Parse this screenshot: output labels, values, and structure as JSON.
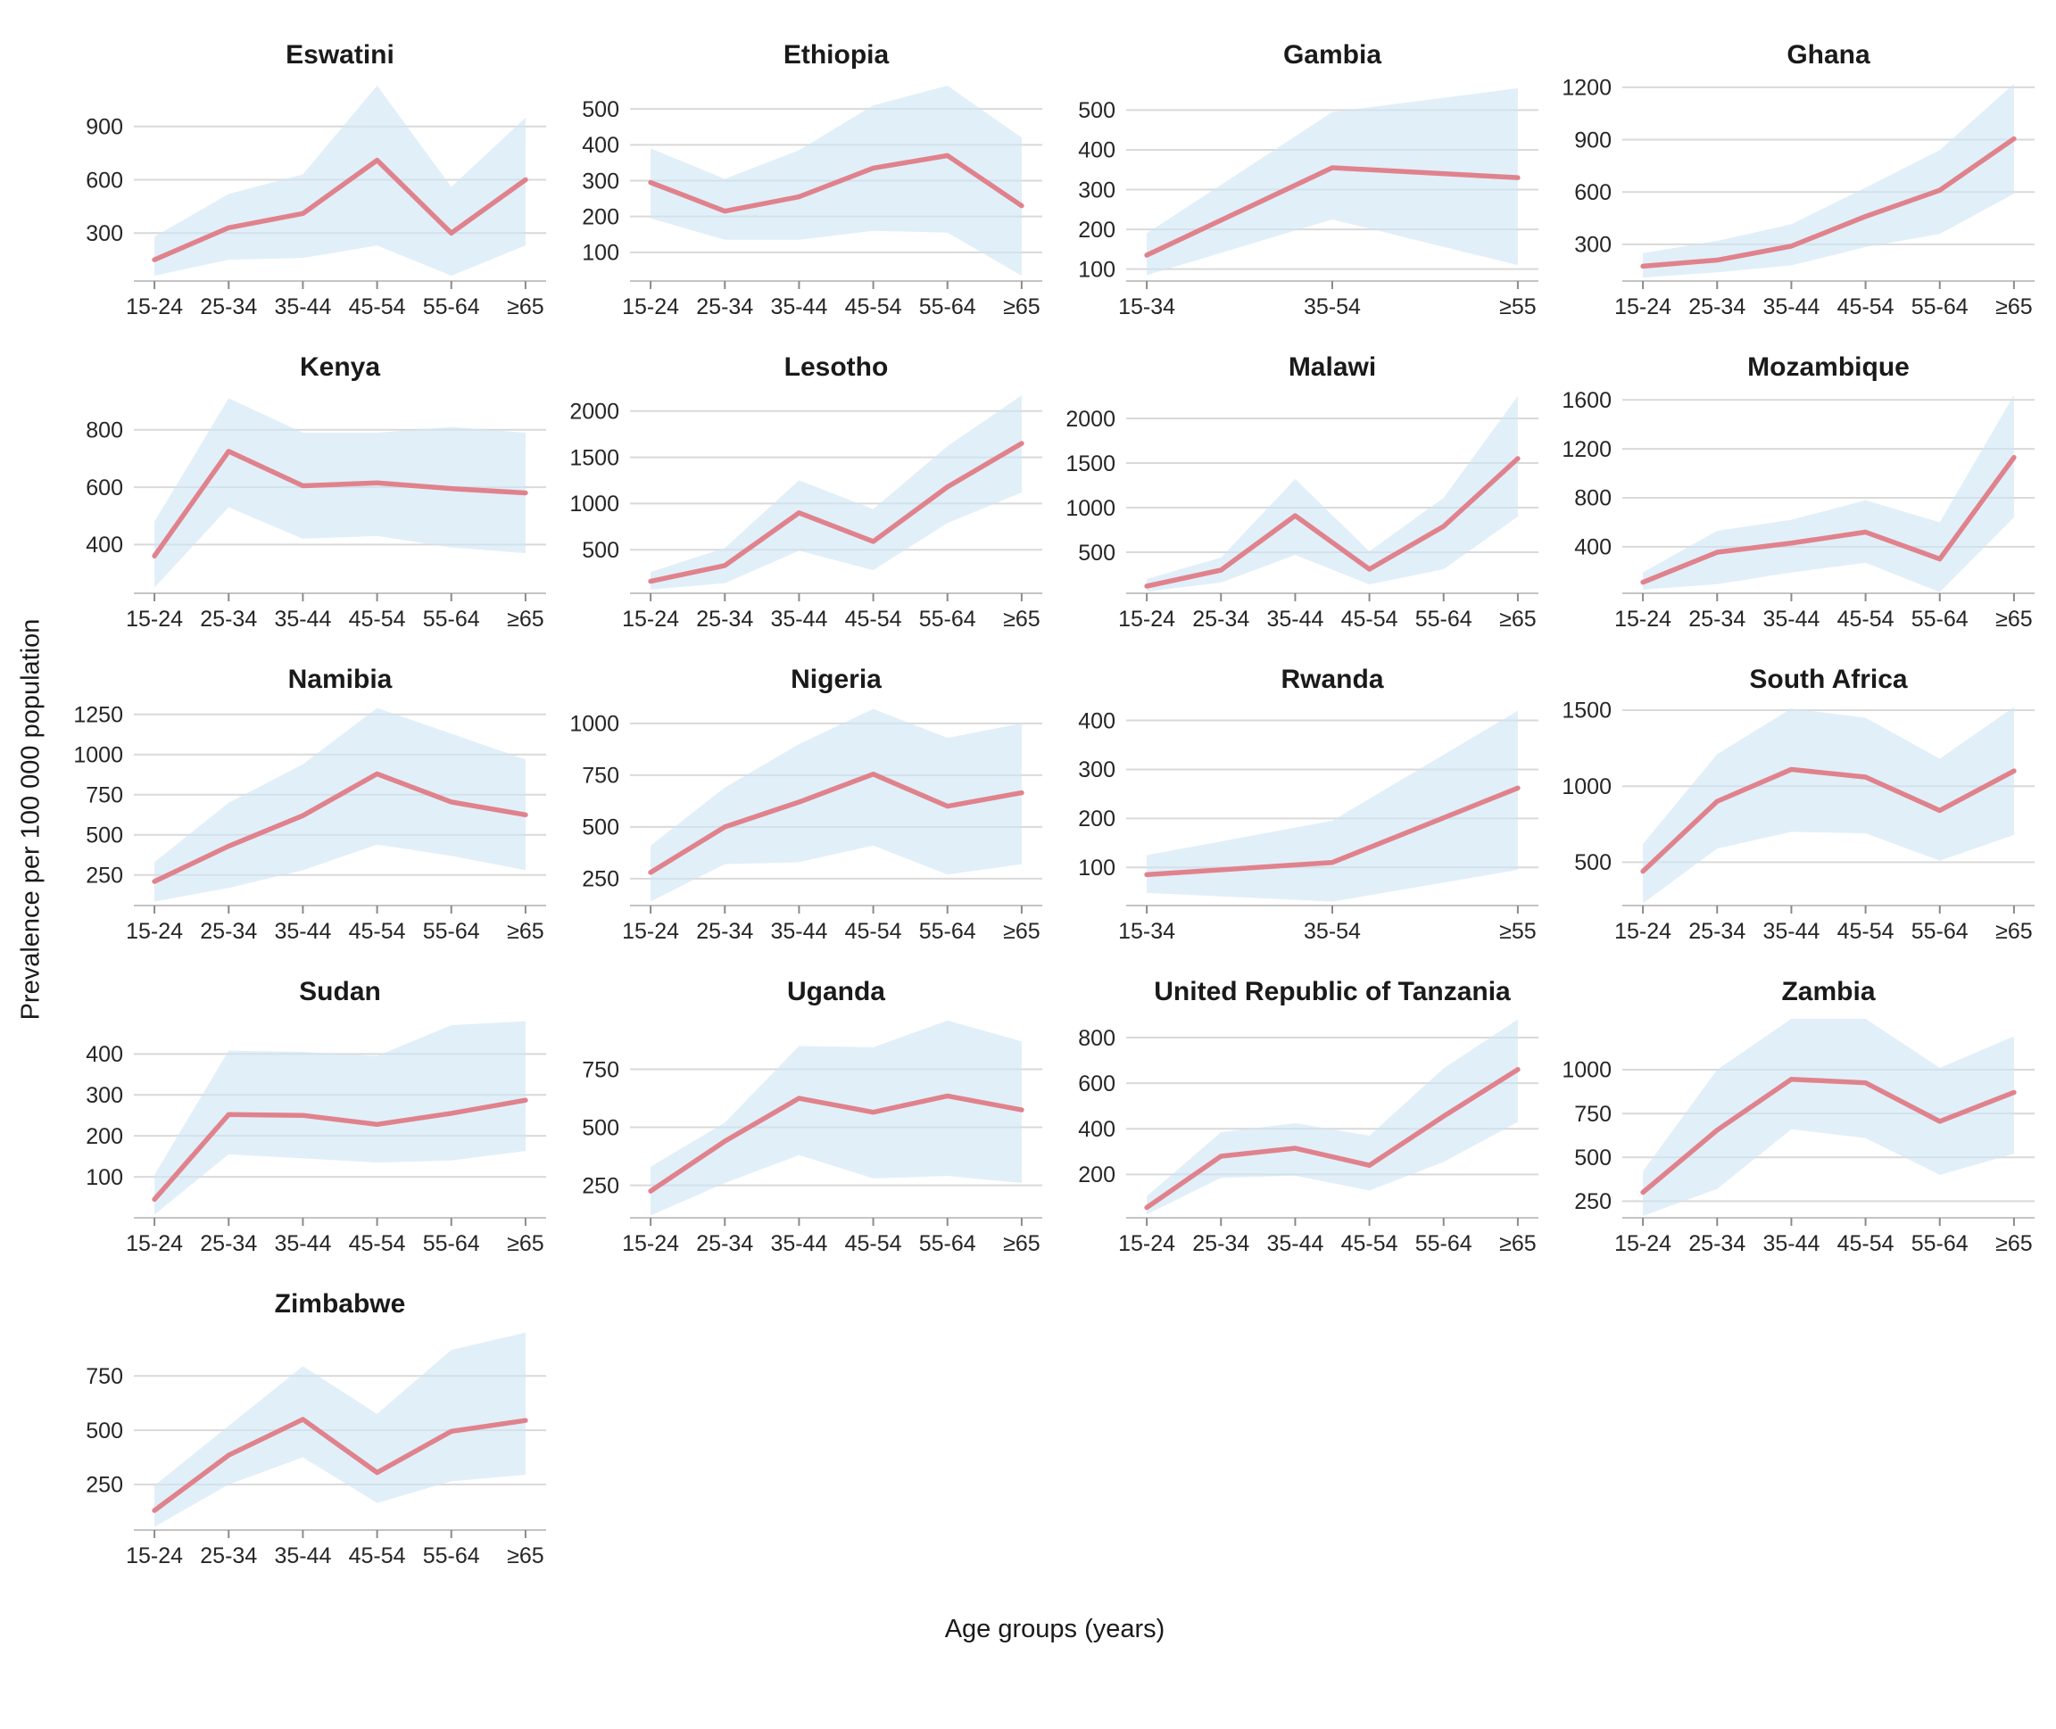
{
  "figure": {
    "y_axis_label": "Prevalence per 100 000 population",
    "x_axis_label": "Age groups (years)"
  },
  "style": {
    "line_color": "#e0828c",
    "band_fill": "rgba(206,229,246,0.62)",
    "grid_color": "#d9d9d9",
    "axis_color": "#c4c4c4",
    "tick_color": "#8a8a8a",
    "label_color": "#262626"
  },
  "chart_data": [
    {
      "type": "line",
      "title": "Eswatini",
      "categories": [
        "15-24",
        "25-34",
        "35-44",
        "45-54",
        "55-64",
        "≥65"
      ],
      "values": [
        150,
        330,
        410,
        710,
        300,
        600
      ],
      "lower": [
        60,
        150,
        160,
        230,
        60,
        230
      ],
      "upper": [
        280,
        520,
        630,
        1130,
        560,
        950
      ],
      "yticks": [
        300,
        600,
        900
      ],
      "ylim": [
        30,
        1160
      ],
      "ylabel": "Prevalence per 100 000 population"
    },
    {
      "type": "line",
      "title": "Ethiopia",
      "categories": [
        "15-24",
        "25-34",
        "35-44",
        "45-54",
        "55-64",
        "≥65"
      ],
      "values": [
        295,
        215,
        255,
        335,
        370,
        230
      ],
      "lower": [
        195,
        135,
        135,
        160,
        155,
        35
      ],
      "upper": [
        390,
        305,
        385,
        510,
        565,
        420
      ],
      "yticks": [
        100,
        200,
        300,
        400,
        500
      ],
      "ylim": [
        20,
        580
      ]
    },
    {
      "type": "line",
      "title": "Gambia",
      "categories": [
        "15-34",
        "35-54",
        "≥55"
      ],
      "values": [
        135,
        355,
        330
      ],
      "lower": [
        85,
        225,
        110
      ],
      "upper": [
        190,
        495,
        555
      ],
      "yticks": [
        100,
        200,
        300,
        400,
        500
      ],
      "ylim": [
        70,
        575
      ]
    },
    {
      "type": "line",
      "title": "Ghana",
      "categories": [
        "15-24",
        "25-34",
        "35-44",
        "45-54",
        "55-64",
        "≥65"
      ],
      "values": [
        175,
        210,
        290,
        460,
        610,
        905
      ],
      "lower": [
        110,
        140,
        180,
        285,
        360,
        590
      ],
      "upper": [
        250,
        320,
        415,
        625,
        840,
        1220
      ],
      "yticks": [
        300,
        600,
        900,
        1200
      ],
      "ylim": [
        90,
        1240
      ]
    },
    {
      "type": "line",
      "title": "Kenya",
      "categories": [
        "15-24",
        "25-34",
        "35-44",
        "45-54",
        "55-64",
        "≥65"
      ],
      "values": [
        360,
        725,
        605,
        615,
        595,
        580
      ],
      "lower": [
        250,
        530,
        420,
        430,
        390,
        370
      ],
      "upper": [
        480,
        910,
        790,
        790,
        810,
        790
      ],
      "yticks": [
        400,
        600,
        800
      ],
      "ylim": [
        230,
        930
      ]
    },
    {
      "type": "line",
      "title": "Lesotho",
      "categories": [
        "15-24",
        "25-34",
        "35-44",
        "45-54",
        "55-64",
        "≥65"
      ],
      "values": [
        160,
        330,
        900,
        590,
        1180,
        1650
      ],
      "lower": [
        70,
        140,
        490,
        280,
        790,
        1120
      ],
      "upper": [
        260,
        520,
        1250,
        940,
        1620,
        2170
      ],
      "yticks": [
        500,
        1000,
        1500,
        2000
      ],
      "ylim": [
        30,
        2200
      ]
    },
    {
      "type": "line",
      "title": "Malawi",
      "categories": [
        "15-24",
        "25-34",
        "35-44",
        "45-54",
        "55-64",
        "≥65"
      ],
      "values": [
        120,
        300,
        910,
        310,
        790,
        1550
      ],
      "lower": [
        60,
        160,
        470,
        140,
        310,
        900
      ],
      "upper": [
        200,
        440,
        1320,
        510,
        1110,
        2250
      ],
      "yticks": [
        500,
        1000,
        1500,
        2000
      ],
      "ylim": [
        40,
        2290
      ]
    },
    {
      "type": "line",
      "title": "Mozambique",
      "categories": [
        "15-24",
        "25-34",
        "35-44",
        "45-54",
        "55-64",
        "≥65"
      ],
      "values": [
        110,
        355,
        430,
        520,
        300,
        1130
      ],
      "lower": [
        50,
        95,
        190,
        270,
        30,
        640
      ],
      "upper": [
        190,
        530,
        620,
        780,
        600,
        1640
      ],
      "yticks": [
        400,
        800,
        1200,
        1600
      ],
      "ylim": [
        20,
        1660
      ]
    },
    {
      "type": "line",
      "title": "Namibia",
      "categories": [
        "15-24",
        "25-34",
        "35-44",
        "45-54",
        "55-64",
        "≥65"
      ],
      "values": [
        210,
        430,
        620,
        880,
        705,
        625
      ],
      "lower": [
        85,
        170,
        280,
        440,
        370,
        280
      ],
      "upper": [
        330,
        700,
        940,
        1290,
        1130,
        970
      ],
      "yticks": [
        250,
        500,
        750,
        1000,
        1250
      ],
      "ylim": [
        60,
        1310
      ]
    },
    {
      "type": "line",
      "title": "Nigeria",
      "categories": [
        "15-24",
        "25-34",
        "35-44",
        "45-54",
        "55-64",
        "≥65"
      ],
      "values": [
        280,
        500,
        620,
        755,
        600,
        665
      ],
      "lower": [
        140,
        320,
        330,
        410,
        270,
        320
      ],
      "upper": [
        410,
        690,
        900,
        1070,
        930,
        1000
      ],
      "yticks": [
        250,
        500,
        750,
        1000
      ],
      "ylim": [
        120,
        1090
      ]
    },
    {
      "type": "line",
      "title": "Rwanda",
      "categories": [
        "15-34",
        "35-54",
        "≥55"
      ],
      "values": [
        85,
        110,
        262
      ],
      "lower": [
        48,
        30,
        95
      ],
      "upper": [
        125,
        195,
        420
      ],
      "yticks": [
        100,
        200,
        300,
        400
      ],
      "ylim": [
        22,
        432
      ]
    },
    {
      "type": "line",
      "title": "South Africa",
      "categories": [
        "15-24",
        "25-34",
        "35-44",
        "45-54",
        "55-64",
        "≥65"
      ],
      "values": [
        440,
        900,
        1110,
        1060,
        840,
        1100
      ],
      "lower": [
        230,
        590,
        700,
        690,
        510,
        680
      ],
      "upper": [
        620,
        1210,
        1510,
        1450,
        1180,
        1520
      ],
      "yticks": [
        500,
        1000,
        1500
      ],
      "ylim": [
        215,
        1535
      ]
    },
    {
      "type": "line",
      "title": "Sudan",
      "categories": [
        "15-24",
        "25-34",
        "35-44",
        "45-54",
        "55-64",
        "≥65"
      ],
      "values": [
        45,
        252,
        250,
        228,
        255,
        287
      ],
      "lower": [
        8,
        155,
        145,
        135,
        140,
        163
      ],
      "upper": [
        105,
        408,
        405,
        395,
        470,
        480
      ],
      "yticks": [
        100,
        200,
        300,
        400
      ],
      "ylim": [
        0,
        490
      ]
    },
    {
      "type": "line",
      "title": "Uganda",
      "categories": [
        "15-24",
        "25-34",
        "35-44",
        "45-54",
        "55-64",
        "≥65"
      ],
      "values": [
        225,
        440,
        625,
        565,
        635,
        575
      ],
      "lower": [
        120,
        260,
        380,
        280,
        290,
        260
      ],
      "upper": [
        330,
        520,
        850,
        845,
        960,
        870
      ],
      "yticks": [
        250,
        500,
        750
      ],
      "ylim": [
        110,
        975
      ]
    },
    {
      "type": "line",
      "title": "United Republic of Tanzania",
      "categories": [
        "15-24",
        "25-34",
        "35-44",
        "45-54",
        "55-64",
        "≥65"
      ],
      "values": [
        55,
        280,
        315,
        240,
        455,
        660
      ],
      "lower": [
        25,
        185,
        195,
        130,
        255,
        430
      ],
      "upper": [
        105,
        385,
        425,
        370,
        665,
        880
      ],
      "yticks": [
        200,
        400,
        600,
        800
      ],
      "ylim": [
        10,
        890
      ]
    },
    {
      "type": "line",
      "title": "Zambia",
      "categories": [
        "15-24",
        "25-34",
        "35-44",
        "45-54",
        "55-64",
        "≥65"
      ],
      "values": [
        300,
        655,
        945,
        925,
        705,
        870
      ],
      "lower": [
        165,
        320,
        660,
        610,
        400,
        520
      ],
      "upper": [
        420,
        1000,
        1290,
        1290,
        1010,
        1190
      ],
      "yticks": [
        250,
        500,
        750,
        1000
      ],
      "ylim": [
        155,
        1300
      ]
    },
    {
      "type": "line",
      "title": "Zimbabwe",
      "categories": [
        "15-24",
        "25-34",
        "35-44",
        "45-54",
        "55-64",
        "≥65"
      ],
      "values": [
        130,
        385,
        550,
        305,
        495,
        545
      ],
      "lower": [
        55,
        250,
        375,
        165,
        265,
        295
      ],
      "upper": [
        245,
        520,
        795,
        575,
        870,
        950
      ],
      "yticks": [
        250,
        500,
        750
      ],
      "ylim": [
        40,
        965
      ]
    }
  ]
}
